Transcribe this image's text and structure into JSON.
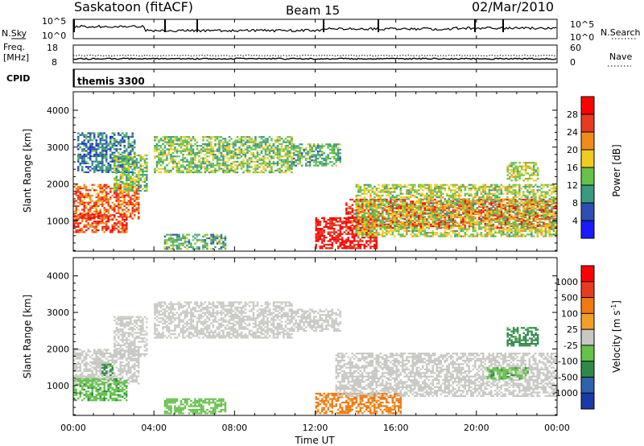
{
  "header": {
    "station": "Saskatoon (fitACF)",
    "beam": "Beam 15",
    "date": "02/Mar/2010"
  },
  "noise_panel": {
    "left_label": "N.Sky",
    "right_label": "N.Search",
    "left_ticks": [
      "10^5",
      "10^0"
    ],
    "right_ticks": [
      "10^5",
      "10^0"
    ]
  },
  "freq_panel": {
    "left_label_1": "Freq.",
    "left_label_2": "[MHz]",
    "right_label": "Nave",
    "left_ticks": [
      "18",
      "8"
    ],
    "right_ticks": [
      "60",
      "0"
    ]
  },
  "cpid_panel": {
    "label": "CPID",
    "program": "themis 3300"
  },
  "time_axis": {
    "label": "Time UT",
    "ticks": [
      "00:00",
      "04:00",
      "08:00",
      "12:00",
      "16:00",
      "20:00",
      "00:00"
    ]
  },
  "range_axis": {
    "label": "Slant Range [km]",
    "ticks": [
      "1000",
      "2000",
      "3000",
      "4000"
    ]
  },
  "chart_data": [
    {
      "type": "heatmap",
      "panel": "power",
      "xlabel": "Time UT",
      "ylabel": "Slant Range [km]",
      "xlim": [
        0,
        24
      ],
      "ylim": [
        180,
        4500
      ],
      "colorbar_label": "Power [dB]",
      "colorbar_ticks": [
        "4",
        "8",
        "12",
        "16",
        "20",
        "24",
        "28"
      ],
      "colorbar_colors": [
        "#1a1aff",
        "#2f4fb0",
        "#3a9a80",
        "#66c24a",
        "#f0cc20",
        "#f08c1c",
        "#e83a20",
        "#ff0000"
      ],
      "regions": [
        {
          "t": [
            0.0,
            3.2
          ],
          "r": [
            1050,
            2000
          ],
          "level": 22
        },
        {
          "t": [
            0.0,
            2.6
          ],
          "r": [
            700,
            1200
          ],
          "level": 24
        },
        {
          "t": [
            0.2,
            3.0
          ],
          "r": [
            2300,
            3400
          ],
          "level": 6
        },
        {
          "t": [
            2.0,
            3.6
          ],
          "r": [
            1800,
            2800
          ],
          "level": 12
        },
        {
          "t": [
            4.0,
            10.8
          ],
          "r": [
            2300,
            3300
          ],
          "level": 12
        },
        {
          "t": [
            4.5,
            7.5
          ],
          "r": [
            250,
            650
          ],
          "level": 10
        },
        {
          "t": [
            10.8,
            13.2
          ],
          "r": [
            2500,
            3100
          ],
          "level": 10
        },
        {
          "t": [
            12.0,
            15.0
          ],
          "r": [
            250,
            1100
          ],
          "level": 28
        },
        {
          "t": [
            13.5,
            24.0
          ],
          "r": [
            800,
            1600
          ],
          "level": 26
        },
        {
          "t": [
            14.0,
            24.0
          ],
          "r": [
            600,
            2000
          ],
          "level": 14
        },
        {
          "t": [
            21.5,
            23.0
          ],
          "r": [
            2100,
            2600
          ],
          "level": 14
        }
      ]
    },
    {
      "type": "heatmap",
      "panel": "velocity",
      "xlabel": "Time UT",
      "ylabel": "Slant Range [km]",
      "xlim": [
        0,
        24
      ],
      "ylim": [
        180,
        4500
      ],
      "colorbar_label": "Velocity [m s^-1]",
      "colorbar_ticks": [
        "1000",
        "500",
        "100",
        "25",
        "-25",
        "-100",
        "-500",
        "-1000"
      ],
      "colorbar_colors": [
        "#1a3aa8",
        "#2f62a8",
        "#2f8a4a",
        "#66c24a",
        "#c8c8c4",
        "#f0a028",
        "#f07a10",
        "#e83a20",
        "#ff0000"
      ],
      "regions": [
        {
          "t": [
            0.0,
            3.2
          ],
          "r": [
            1050,
            2000
          ],
          "v": 0
        },
        {
          "t": [
            0.0,
            2.6
          ],
          "r": [
            600,
            1200
          ],
          "v": 80
        },
        {
          "t": [
            1.4,
            1.9
          ],
          "r": [
            1300,
            1600
          ],
          "v": 150
        },
        {
          "t": [
            2.0,
            3.6
          ],
          "r": [
            1800,
            2900
          ],
          "v": 0
        },
        {
          "t": [
            4.0,
            10.8
          ],
          "r": [
            2300,
            3300
          ],
          "v": 0
        },
        {
          "t": [
            4.5,
            7.5
          ],
          "r": [
            250,
            650
          ],
          "v": 60
        },
        {
          "t": [
            10.8,
            13.2
          ],
          "r": [
            2500,
            3100
          ],
          "v": 0
        },
        {
          "t": [
            12.0,
            16.2
          ],
          "r": [
            250,
            800
          ],
          "v": -150
        },
        {
          "t": [
            13.0,
            24.0
          ],
          "r": [
            700,
            1900
          ],
          "v": 0
        },
        {
          "t": [
            21.5,
            23.0
          ],
          "r": [
            2100,
            2600
          ],
          "v": 150
        },
        {
          "t": [
            20.5,
            22.5
          ],
          "r": [
            1200,
            1500
          ],
          "v": 80
        }
      ]
    }
  ]
}
